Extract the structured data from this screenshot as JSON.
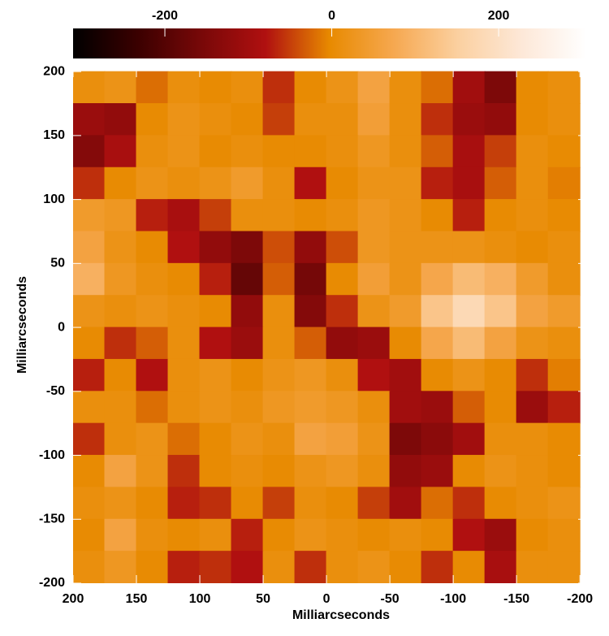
{
  "chart_data": {
    "type": "heatmap",
    "xlabel": "Milliarcseconds",
    "ylabel": "Milliarcseconds",
    "xlim": [
      200,
      -205
    ],
    "ylim": [
      -200,
      202
    ],
    "xticks": [
      200,
      150,
      100,
      50,
      0,
      -50,
      -100,
      -150,
      -200
    ],
    "yticks": [
      -200,
      -150,
      -100,
      -50,
      0,
      50,
      100,
      150,
      200
    ],
    "clim": [
      -310,
      305
    ],
    "cticks": [
      -200,
      0,
      200
    ],
    "colormap": [
      "#000000",
      "#3a0000",
      "#780808",
      "#b01010",
      "#e88a00",
      "#f6a850",
      "#fbd0a0",
      "#fde8d8",
      "#ffffff"
    ],
    "x": [
      187.5,
      162.5,
      137.5,
      112.5,
      87.5,
      62.5,
      37.5,
      12.5,
      -12.5,
      -37.5,
      -62.5,
      -87.5,
      -112.5,
      -137.5,
      -162.5,
      -187.5
    ],
    "y": [
      187.5,
      162.5,
      137.5,
      112.5,
      87.5,
      62.5,
      37.5,
      12.5,
      -12.5,
      -37.5,
      -62.5,
      -87.5,
      -112.5,
      -137.5,
      -162.5,
      -187.5
    ],
    "z": [
      [
        10,
        20,
        -20,
        10,
        0,
        10,
        -60,
        0,
        20,
        60,
        10,
        -20,
        -100,
        -150,
        0,
        10
      ],
      [
        -110,
        -120,
        0,
        20,
        10,
        0,
        -50,
        10,
        10,
        50,
        10,
        -60,
        -110,
        -120,
        0,
        10
      ],
      [
        -140,
        -90,
        10,
        20,
        0,
        10,
        0,
        0,
        10,
        30,
        10,
        -30,
        -90,
        -50,
        10,
        0
      ],
      [
        -60,
        0,
        20,
        10,
        20,
        40,
        10,
        -80,
        0,
        20,
        20,
        -70,
        -90,
        -30,
        10,
        -10
      ],
      [
        40,
        30,
        -70,
        -90,
        -50,
        10,
        10,
        0,
        10,
        30,
        20,
        0,
        -70,
        0,
        10,
        0
      ],
      [
        60,
        20,
        0,
        -80,
        -120,
        -150,
        -40,
        -120,
        -40,
        30,
        20,
        20,
        20,
        10,
        0,
        10
      ],
      [
        90,
        30,
        10,
        0,
        -70,
        -180,
        -30,
        -160,
        0,
        50,
        20,
        70,
        110,
        90,
        40,
        10
      ],
      [
        20,
        10,
        20,
        10,
        0,
        -120,
        10,
        -140,
        -60,
        20,
        40,
        130,
        180,
        130,
        60,
        40
      ],
      [
        0,
        -60,
        -30,
        10,
        -80,
        -110,
        10,
        -30,
        -120,
        -110,
        0,
        70,
        110,
        60,
        20,
        10
      ],
      [
        -70,
        0,
        -80,
        10,
        20,
        0,
        20,
        30,
        10,
        -80,
        -100,
        0,
        20,
        0,
        -60,
        -10
      ],
      [
        10,
        10,
        -20,
        10,
        20,
        10,
        30,
        40,
        30,
        10,
        -100,
        -110,
        -30,
        0,
        -110,
        -70
      ],
      [
        -60,
        10,
        20,
        -20,
        0,
        20,
        10,
        60,
        50,
        20,
        -150,
        -130,
        -100,
        10,
        10,
        0
      ],
      [
        0,
        60,
        20,
        -60,
        0,
        10,
        0,
        20,
        30,
        10,
        -120,
        -110,
        0,
        20,
        10,
        0
      ],
      [
        10,
        20,
        0,
        -70,
        -60,
        0,
        -50,
        10,
        0,
        -50,
        -100,
        -20,
        -60,
        0,
        10,
        20
      ],
      [
        0,
        60,
        10,
        0,
        10,
        -70,
        0,
        20,
        10,
        0,
        10,
        0,
        -80,
        -110,
        0,
        10
      ],
      [
        10,
        30,
        0,
        -70,
        -60,
        -80,
        10,
        -60,
        10,
        20,
        0,
        -60,
        0,
        -90,
        10,
        10
      ]
    ]
  }
}
